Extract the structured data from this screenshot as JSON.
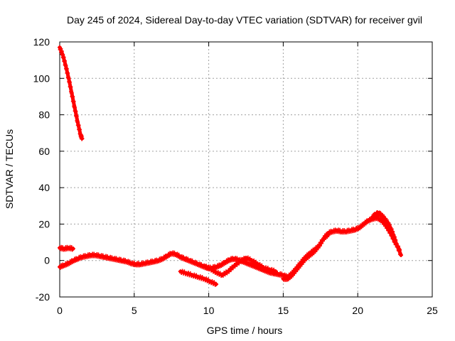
{
  "chart_data": {
    "type": "scatter",
    "title": "Day 245 of 2024, Sidereal Day-to-day VTEC variation (SDTVAR) for receiver gvil",
    "xlabel": "GPS time / hours",
    "ylabel": "SDTVAR / TECUs",
    "xlim": [
      0,
      25
    ],
    "ylim": [
      -20,
      120
    ],
    "xticks": [
      0,
      5,
      10,
      15,
      20,
      25
    ],
    "yticks": [
      -20,
      0,
      20,
      40,
      60,
      80,
      100,
      120
    ],
    "grid": true,
    "legend": "none",
    "marker": "+",
    "color": "#ff0000",
    "series": [
      {
        "x": [
          0.0,
          0.2,
          0.4,
          0.6,
          0.8,
          1.0,
          1.2,
          1.4,
          1.5
        ],
        "y": [
          117,
          113,
          107,
          100,
          92,
          84,
          76,
          69,
          67
        ]
      },
      {
        "x": [
          0.0,
          0.3,
          0.6,
          0.9
        ],
        "y": [
          7,
          6.5,
          7,
          6.5
        ]
      },
      {
        "x": [
          0.0,
          0.3,
          0.6,
          0.9,
          1.2,
          1.5,
          1.8,
          2.1,
          2.4,
          2.7,
          3.0,
          3.3,
          3.6,
          3.9,
          4.2,
          4.5,
          4.8,
          5.1,
          5.4,
          5.7,
          6.0,
          6.3,
          6.6,
          6.9,
          7.2,
          7.5,
          7.8,
          8.1,
          8.4,
          8.7,
          9.0,
          9.3,
          9.6,
          9.9,
          10.2,
          10.5,
          10.8,
          11.1,
          11.4,
          11.7,
          12.0,
          12.3,
          12.6,
          12.9,
          13.2,
          13.5,
          13.8,
          14.1,
          14.4,
          14.7,
          15.0,
          15.3,
          15.6,
          15.9,
          16.2,
          16.5,
          16.8,
          17.1,
          17.4,
          17.7,
          18.0,
          18.3,
          18.6,
          18.9,
          19.2,
          19.5,
          19.8,
          20.1,
          20.4,
          20.7,
          21.0,
          21.3,
          21.6,
          21.9,
          22.2,
          22.5,
          22.8
        ],
        "y": [
          -3.5,
          -2.5,
          -1.5,
          0,
          1,
          2,
          2.5,
          3,
          3,
          2.5,
          2,
          1.5,
          1,
          0.5,
          0,
          -0.5,
          -1.5,
          -2,
          -2,
          -1.5,
          -1,
          -0.5,
          0,
          1,
          2.5,
          4,
          3.5,
          2,
          1,
          0,
          -1,
          -2,
          -3,
          -4,
          -4,
          -3.5,
          -2.5,
          -1,
          0.5,
          1,
          0.5,
          -0.5,
          -1.5,
          -2.5,
          -3.5,
          -4.5,
          -5.5,
          -6.5,
          -7,
          -7.5,
          -8,
          -9,
          -7,
          -4,
          -1,
          2,
          4,
          6,
          8,
          12,
          15,
          16,
          16.5,
          16,
          16,
          16.5,
          17,
          18,
          20,
          22,
          23,
          23.5,
          22,
          19,
          15,
          10,
          6
        ]
      },
      {
        "x": [
          21.0,
          21.2,
          21.4,
          21.6,
          21.8,
          22.0,
          22.2,
          22.4,
          22.6,
          22.9
        ],
        "y": [
          24,
          25.5,
          26,
          25,
          23,
          21,
          18,
          14,
          9,
          3
        ]
      },
      {
        "x": [
          8.1,
          8.5,
          8.9,
          9.3,
          9.7,
          10.1,
          10.5
        ],
        "y": [
          -6,
          -7,
          -8,
          -9,
          -10,
          -11.5,
          -13
        ]
      },
      {
        "x": [
          9.7,
          10.1,
          10.5,
          10.9,
          11.3,
          11.7,
          12.1,
          12.5,
          12.9,
          13.3,
          13.7,
          14.1,
          14.5
        ],
        "y": [
          -3,
          -4.5,
          -6.5,
          -8,
          -6,
          -3,
          -0.5,
          1.5,
          0,
          -2,
          -4,
          -5,
          -6
        ]
      },
      {
        "x": [
          15.0,
          15.3,
          15.6,
          15.9,
          16.2,
          16.5,
          16.8,
          17.1,
          17.4,
          17.7,
          18.0
        ],
        "y": [
          -10,
          -10,
          -8,
          -5,
          -2,
          1,
          3,
          5,
          8,
          12,
          14
        ]
      }
    ]
  }
}
